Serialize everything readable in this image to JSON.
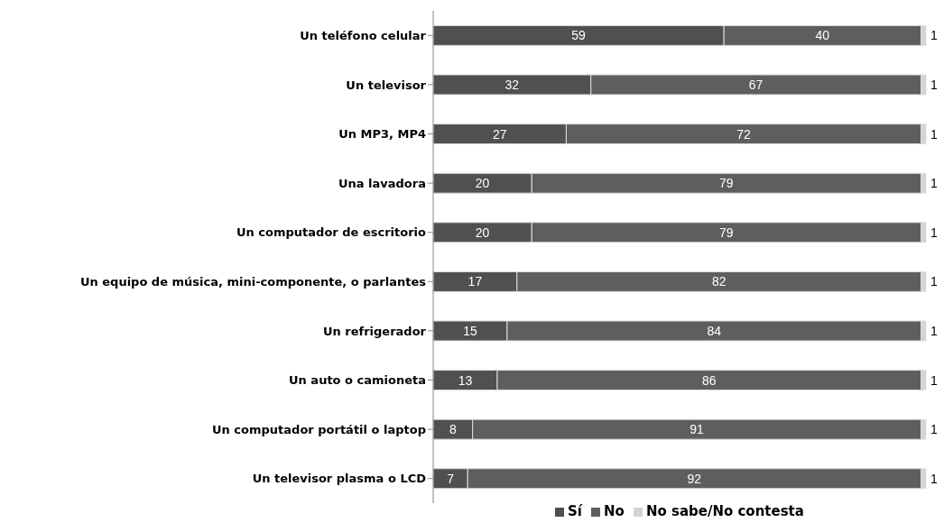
{
  "chart_data": {
    "type": "bar",
    "orientation": "horizontal",
    "stacked": true,
    "data_labels": true,
    "legend": "bottom",
    "grid": false,
    "categories": [
      "Un teléfono celular",
      "Un televisor",
      "Un MP3, MP4",
      "Una lavadora",
      "Un computador de escritorio",
      "Un equipo de música, mini-componente, o parlantes",
      "Un refrigerador",
      "Un auto o camioneta",
      "Un computador portátil o laptop",
      "Un televisor plasma o LCD"
    ],
    "series": [
      {
        "name": "Sí",
        "color": "#505050",
        "values": [
          59,
          32,
          27,
          20,
          20,
          17,
          15,
          13,
          8,
          7
        ]
      },
      {
        "name": "No",
        "color": "#5e5e5e",
        "values": [
          40,
          67,
          72,
          79,
          79,
          82,
          84,
          86,
          91,
          92
        ]
      },
      {
        "name": "No sabe/No contesta",
        "color": "#d4d4d4",
        "values": [
          1,
          1,
          1,
          1,
          1,
          1,
          1,
          1,
          1,
          1
        ]
      }
    ]
  }
}
